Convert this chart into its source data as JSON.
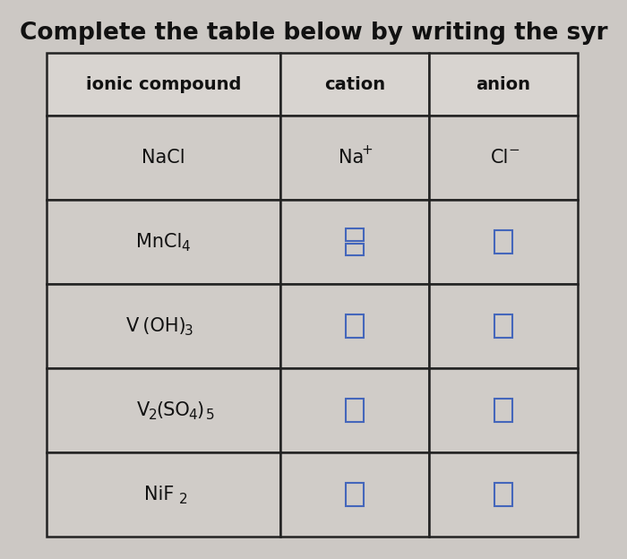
{
  "title": "Complete the table below by writing the syr",
  "title_fontsize": 19,
  "bg_color": "#ccc8c4",
  "table_bg": "#d4d0cc",
  "header_bg": "#d8d4d0",
  "cell_bg": "#d0ccc8",
  "answer_box_color": "#4466bb",
  "border_color": "#222222",
  "columns": [
    "ionic compound",
    "cation",
    "anion"
  ],
  "col_header_bold": true,
  "rows": [
    {
      "compound": "NaCl",
      "cation_text": "Na",
      "cation_superscript": "+",
      "anion_text": "Cl",
      "anion_superscript": "−",
      "cation_answered": true,
      "anion_answered": true
    },
    {
      "compound": "MnCl",
      "compound_sub": "4",
      "cation_text": "",
      "anion_text": "",
      "cation_answered": false,
      "anion_answered": false,
      "cation_double_box": true
    },
    {
      "compound": "V (OH)",
      "compound_sub": "3",
      "cation_text": "",
      "anion_text": "",
      "cation_answered": false,
      "anion_answered": false,
      "cation_double_box": false
    },
    {
      "compound": "V",
      "compound_sub2": "2",
      "compound_mid": "(SO",
      "compound_sub3": "4",
      "compound_end": ")",
      "compound_sub4": "5",
      "cation_text": "",
      "anion_text": "",
      "cation_answered": false,
      "anion_answered": false,
      "cation_double_box": false
    },
    {
      "compound": "NiF",
      "compound_sub": "2",
      "cation_text": "",
      "anion_text": "",
      "cation_answered": false,
      "anion_answered": false,
      "cation_double_box": false
    }
  ]
}
